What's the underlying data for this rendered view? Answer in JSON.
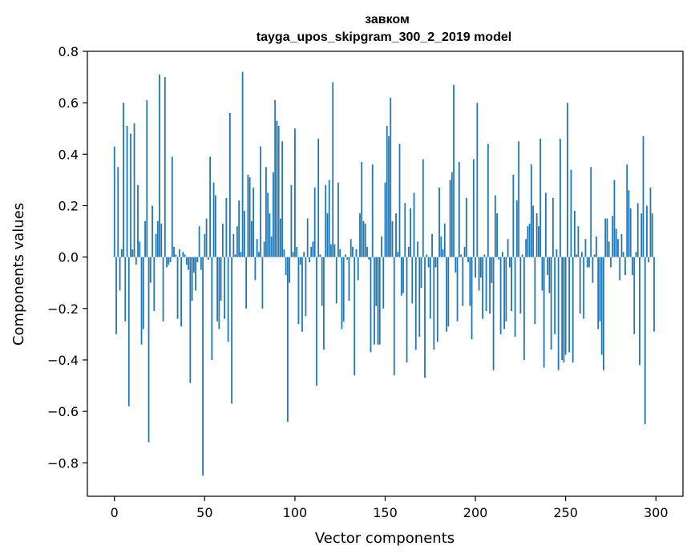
{
  "chart_data": {
    "type": "bar",
    "title": "завком",
    "subtitle": "tayga_upos_skipgram_300_2_2019 model",
    "xlabel": "Vector components",
    "ylabel": "Components values",
    "xlim": [
      -15,
      315
    ],
    "ylim": [
      -0.93,
      0.8
    ],
    "xticks": [
      0,
      50,
      100,
      150,
      200,
      250,
      300
    ],
    "xtick_labels": [
      "0",
      "50",
      "100",
      "150",
      "200",
      "250",
      "300"
    ],
    "yticks": [
      -0.8,
      -0.6,
      -0.4,
      -0.2,
      0.0,
      0.2,
      0.4,
      0.6,
      0.8
    ],
    "ytick_labels": [
      "−0.8",
      "−0.6",
      "−0.4",
      "−0.2",
      "0.0",
      "0.2",
      "0.4",
      "0.6",
      "0.8"
    ],
    "grid": false,
    "color": "#1f77b4",
    "values": [
      0.43,
      -0.3,
      0.35,
      -0.13,
      0.03,
      0.6,
      -0.25,
      0.51,
      -0.58,
      0.48,
      0.03,
      0.52,
      -0.03,
      0.28,
      0.06,
      -0.34,
      -0.28,
      0.14,
      0.61,
      -0.72,
      -0.1,
      0.2,
      -0.21,
      0.09,
      0.14,
      0.71,
      0.13,
      -0.25,
      0.7,
      -0.04,
      -0.03,
      -0.02,
      0.39,
      0.04,
      0.01,
      -0.24,
      0.03,
      -0.27,
      0.02,
      0.01,
      -0.03,
      -0.05,
      -0.49,
      -0.17,
      -0.06,
      -0.13,
      -0.02,
      0.12,
      -0.05,
      -0.85,
      0.09,
      0.15,
      -0.01,
      0.39,
      -0.4,
      0.29,
      0.24,
      -0.25,
      -0.28,
      -0.17,
      0.13,
      -0.24,
      0.23,
      -0.33,
      0.56,
      -0.57,
      0.09,
      0.01,
      0.12,
      0.22,
      0.02,
      0.72,
      0.18,
      -0.2,
      0.32,
      0.31,
      0.14,
      0.27,
      -0.09,
      0.07,
      0.02,
      0.43,
      -0.2,
      0.06,
      0.35,
      0.25,
      0.17,
      0.08,
      0.33,
      0.61,
      0.53,
      0.51,
      0.15,
      0.45,
      0.03,
      -0.07,
      -0.64,
      -0.1,
      0.28,
      0.02,
      0.5,
      0.04,
      -0.26,
      -0.03,
      -0.29,
      0.02,
      -0.23,
      0.15,
      -0.02,
      0.04,
      0.06,
      0.27,
      -0.5,
      0.46,
      0.01,
      -0.19,
      -0.36,
      0.28,
      0.17,
      0.3,
      0.05,
      0.68,
      0.05,
      -0.18,
      0.29,
      0.03,
      -0.28,
      -0.25,
      0.01,
      -0.01,
      -0.17,
      0.07,
      0.04,
      -0.46,
      0.03,
      -0.09,
      0.17,
      0.37,
      0.14,
      0.13,
      0.04,
      -0.01,
      -0.37,
      0.36,
      -0.34,
      -0.19,
      -0.34,
      -0.34,
      0.08,
      -0.2,
      0.29,
      0.51,
      0.47,
      0.62,
      0.14,
      -0.46,
      0.17,
      0.02,
      0.44,
      -0.15,
      -0.14,
      0.21,
      -0.41,
      0.04,
      0.19,
      -0.18,
      0.25,
      -0.36,
      0.06,
      -0.31,
      -0.12,
      0.38,
      -0.47,
      0.01,
      -0.04,
      -0.24,
      0.09,
      -0.36,
      -0.04,
      -0.33,
      0.27,
      0.08,
      0.03,
      0.13,
      -0.29,
      -0.27,
      0.3,
      0.33,
      0.67,
      -0.06,
      -0.25,
      0.37,
      0.01,
      -0.19,
      0.04,
      0.23,
      -0.02,
      -0.19,
      -0.32,
      0.38,
      -0.08,
      0.6,
      -0.13,
      -0.08,
      -0.24,
      0.01,
      -0.21,
      0.44,
      -0.22,
      -0.1,
      -0.44,
      0.24,
      0.17,
      -0.01,
      -0.3,
      0.02,
      -0.28,
      -0.25,
      0.07,
      -0.04,
      -0.21,
      0.32,
      -0.31,
      0.22,
      0.45,
      -0.22,
      0.01,
      -0.4,
      0.07,
      0.12,
      0.13,
      0.36,
      0.2,
      -0.26,
      0.17,
      0.12,
      0.46,
      -0.13,
      -0.43,
      0.25,
      -0.07,
      -0.14,
      -0.36,
      0.23,
      -0.3,
      0.03,
      -0.44,
      0.46,
      -0.4,
      -0.41,
      -0.38,
      0.6,
      -0.37,
      0.34,
      -0.41,
      0.18,
      0.01,
      0.12,
      -0.22,
      0.02,
      -0.24,
      0.07,
      -0.04,
      -0.04,
      0.35,
      -0.1,
      0.01,
      0.08,
      -0.28,
      -0.25,
      -0.38,
      -0.44,
      0.15,
      0.15,
      0.06,
      -0.04,
      0.16,
      0.3,
      0.11,
      0.07,
      -0.09,
      0.09,
      0.02,
      -0.07,
      0.36,
      0.26,
      0.19,
      -0.07,
      -0.3,
      0.02,
      0.21,
      -0.42,
      0.17,
      0.47,
      -0.65,
      0.2,
      -0.02,
      0.27,
      0.17,
      -0.29
    ]
  }
}
